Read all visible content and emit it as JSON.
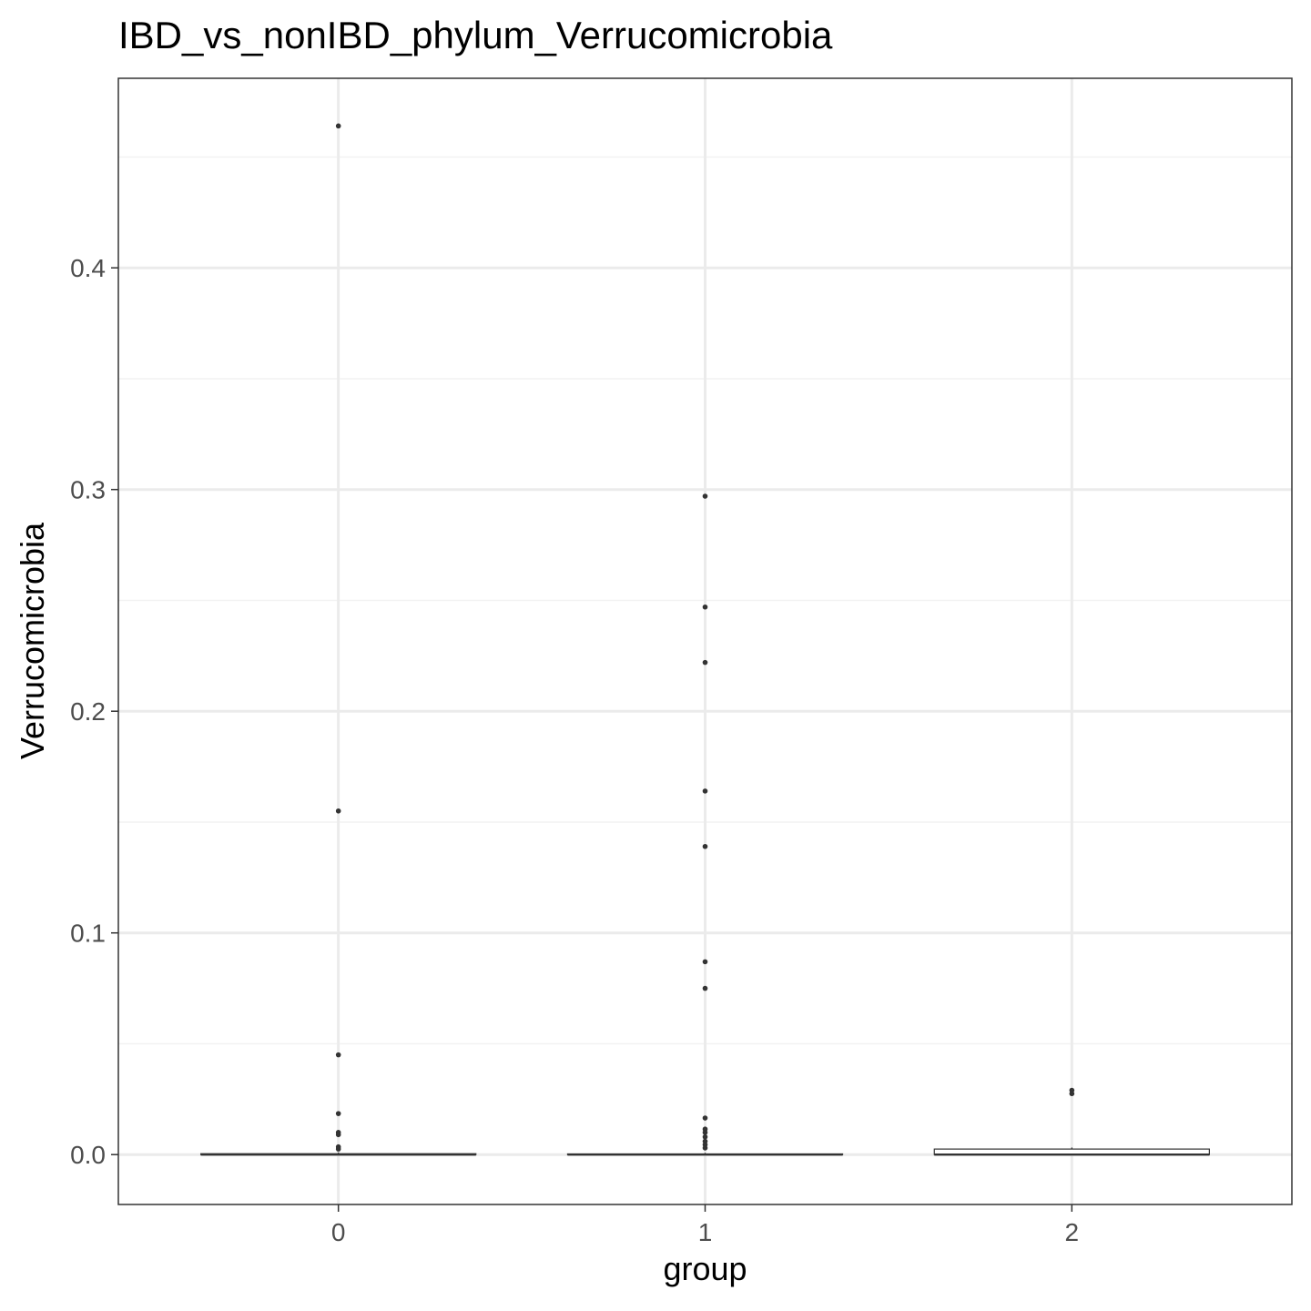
{
  "chart_data": {
    "type": "boxplot",
    "title": "IBD_vs_nonIBD_phylum_Verrucomicrobia",
    "xlabel": "group",
    "ylabel": "Verrucomicrobia",
    "categories": [
      "0",
      "1",
      "2"
    ],
    "yticks": [
      0.0,
      0.1,
      0.2,
      0.3,
      0.4
    ],
    "ytick_labels": [
      "0.0",
      "0.1",
      "0.2",
      "0.3",
      "0.4"
    ],
    "ylim": [
      -0.0225,
      0.4855
    ],
    "grid": true,
    "legend": "none",
    "boxes": [
      {
        "group": "0",
        "q1": 0.0,
        "median": 0.0,
        "q3": 0.0004,
        "whisker_low": 0.0,
        "whisker_high": 0.001
      },
      {
        "group": "1",
        "q1": 0.0,
        "median": 0.0,
        "q3": 0.0003,
        "whisker_low": 0.0,
        "whisker_high": 0.0008
      },
      {
        "group": "2",
        "q1": 0.0,
        "median": 0.0,
        "q3": 0.0025,
        "whisker_low": 0.0,
        "whisker_high": 0.0032
      }
    ],
    "outliers": [
      {
        "group": "0",
        "values": [
          0.464,
          0.155,
          0.045,
          0.0185,
          0.01,
          0.009,
          0.0035,
          0.0025
        ]
      },
      {
        "group": "1",
        "values": [
          0.297,
          0.247,
          0.222,
          0.164,
          0.139,
          0.087,
          0.075,
          0.0165,
          0.0115,
          0.01,
          0.008,
          0.006,
          0.0045,
          0.003
        ]
      },
      {
        "group": "2",
        "values": [
          0.029,
          0.0275
        ]
      }
    ],
    "colors": {
      "panel_border": "#333333",
      "grid_major": "#ebebeb",
      "grid_minor": "#f2f2f2",
      "box_line": "#333333",
      "box_fill": "#ffffff",
      "point": "#333333",
      "tick_label": "#4d4d4d"
    }
  }
}
